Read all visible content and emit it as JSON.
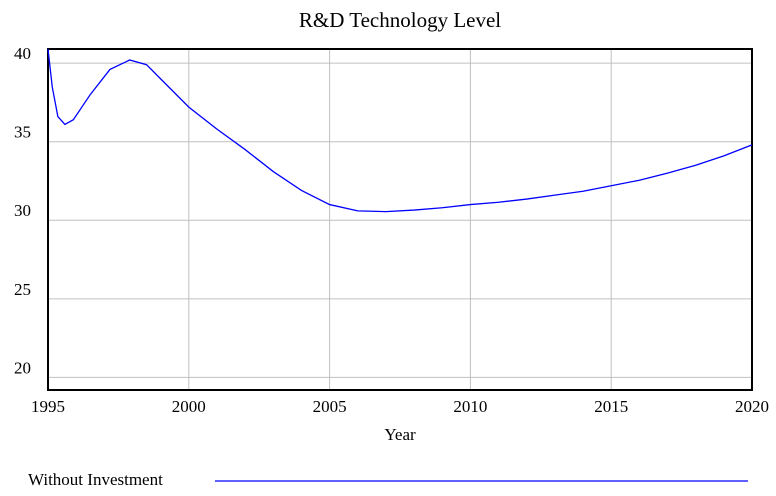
{
  "chart_data": {
    "type": "line",
    "title": "R&D Technology Level",
    "x_label": "Year",
    "x": [
      1995,
      1995.15,
      1995.35,
      1995.6,
      1995.9,
      1996.5,
      1997.2,
      1997.9,
      1998.5,
      1999,
      2000,
      2001,
      2002,
      2003,
      2004,
      2005,
      2006,
      2007,
      2008,
      2009,
      2010,
      2011,
      2012,
      2013,
      2014,
      2015,
      2016,
      2017,
      2018,
      2019,
      2020
    ],
    "series": [
      {
        "name": "Without Investment",
        "color": "#0000ff",
        "values": [
          40.9,
          38.5,
          36.6,
          36.1,
          36.4,
          38.0,
          39.6,
          40.2,
          39.9,
          39.0,
          37.2,
          35.8,
          34.5,
          33.1,
          31.9,
          31.0,
          30.6,
          30.55,
          30.65,
          30.8,
          31.0,
          31.15,
          31.35,
          31.6,
          31.85,
          32.2,
          32.55,
          33.0,
          33.5,
          34.1,
          34.8
        ]
      }
    ],
    "xlim": [
      1995,
      2020
    ],
    "xticks": [
      1995,
      2000,
      2005,
      2010,
      2015,
      2020
    ],
    "ylim": [
      19.2,
      40.9
    ],
    "yticks": [
      20,
      25,
      30,
      35,
      40
    ],
    "grid": true
  }
}
